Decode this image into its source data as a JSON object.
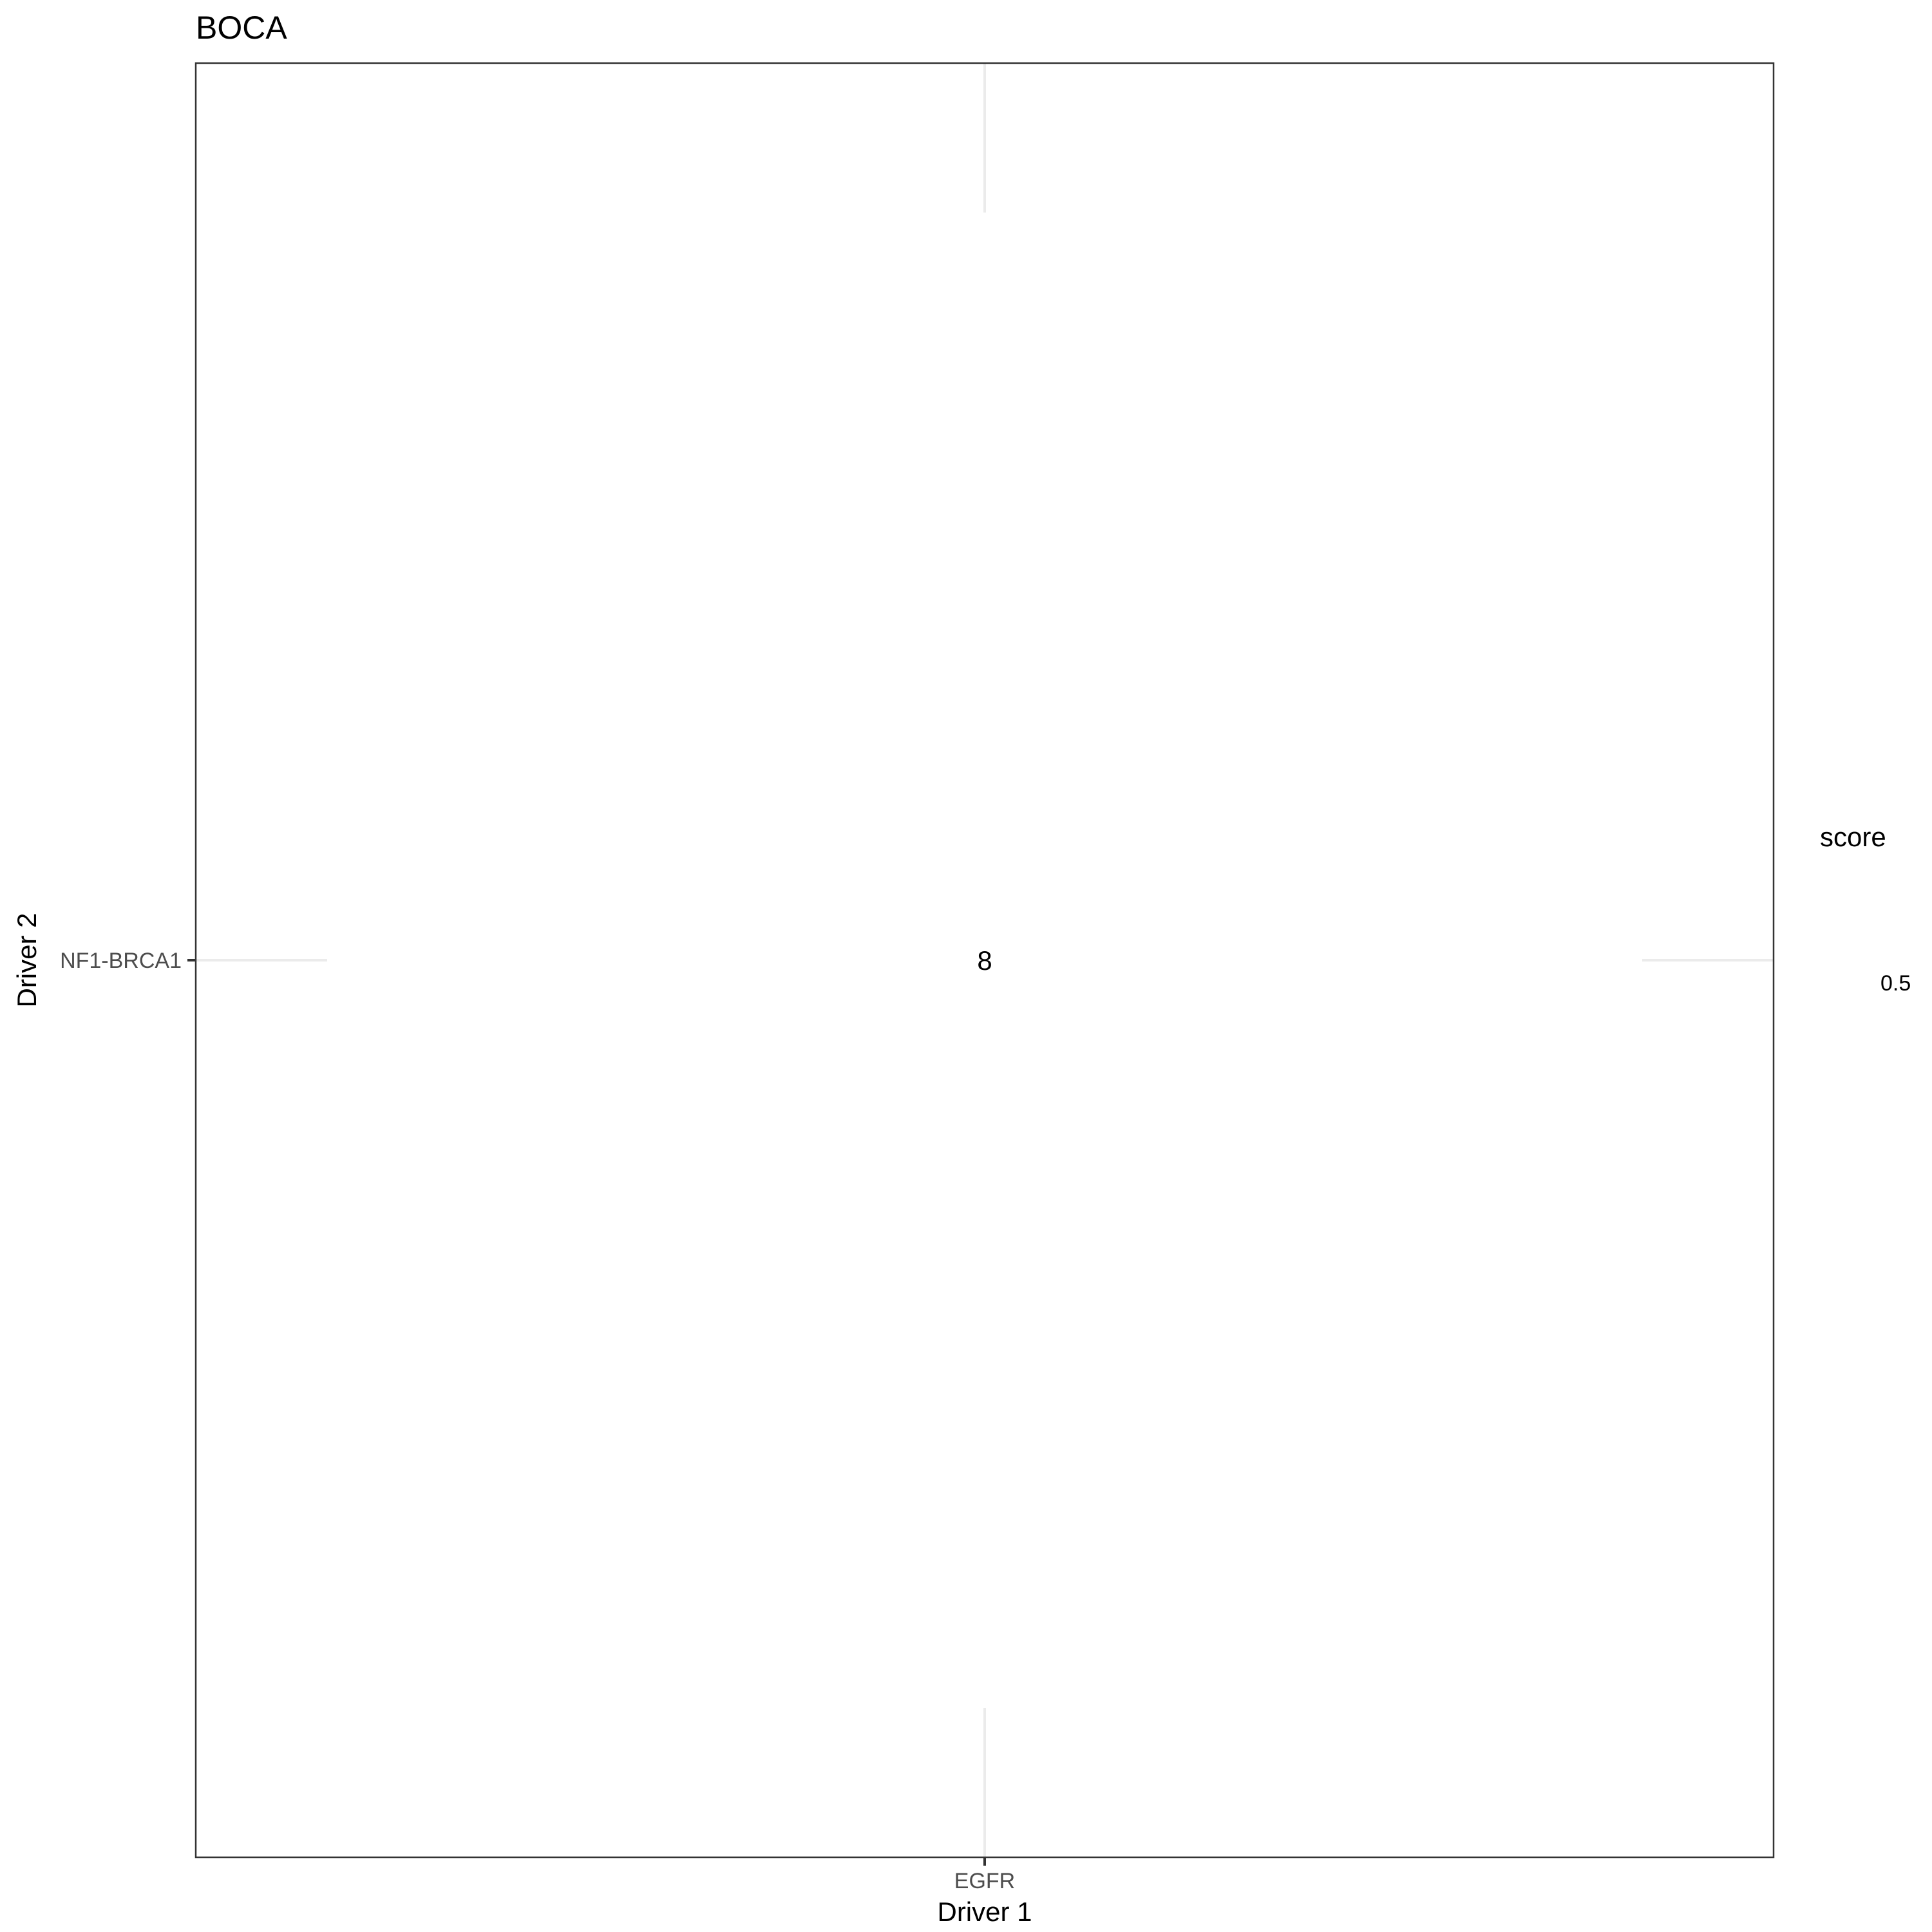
{
  "chart_data": {
    "type": "heatmap",
    "title": "BOCA",
    "xlabel": "Driver 1",
    "ylabel": "Driver 2",
    "x_categories": [
      "EGFR"
    ],
    "y_categories": [
      "NF1-BRCA1"
    ],
    "cells": [
      {
        "x": "EGFR",
        "y": "NF1-BRCA1",
        "label": "8",
        "score": 0.5
      }
    ],
    "legend": {
      "title": "score",
      "labels": [
        "0.5"
      ],
      "placement": "right"
    },
    "grid": true
  }
}
